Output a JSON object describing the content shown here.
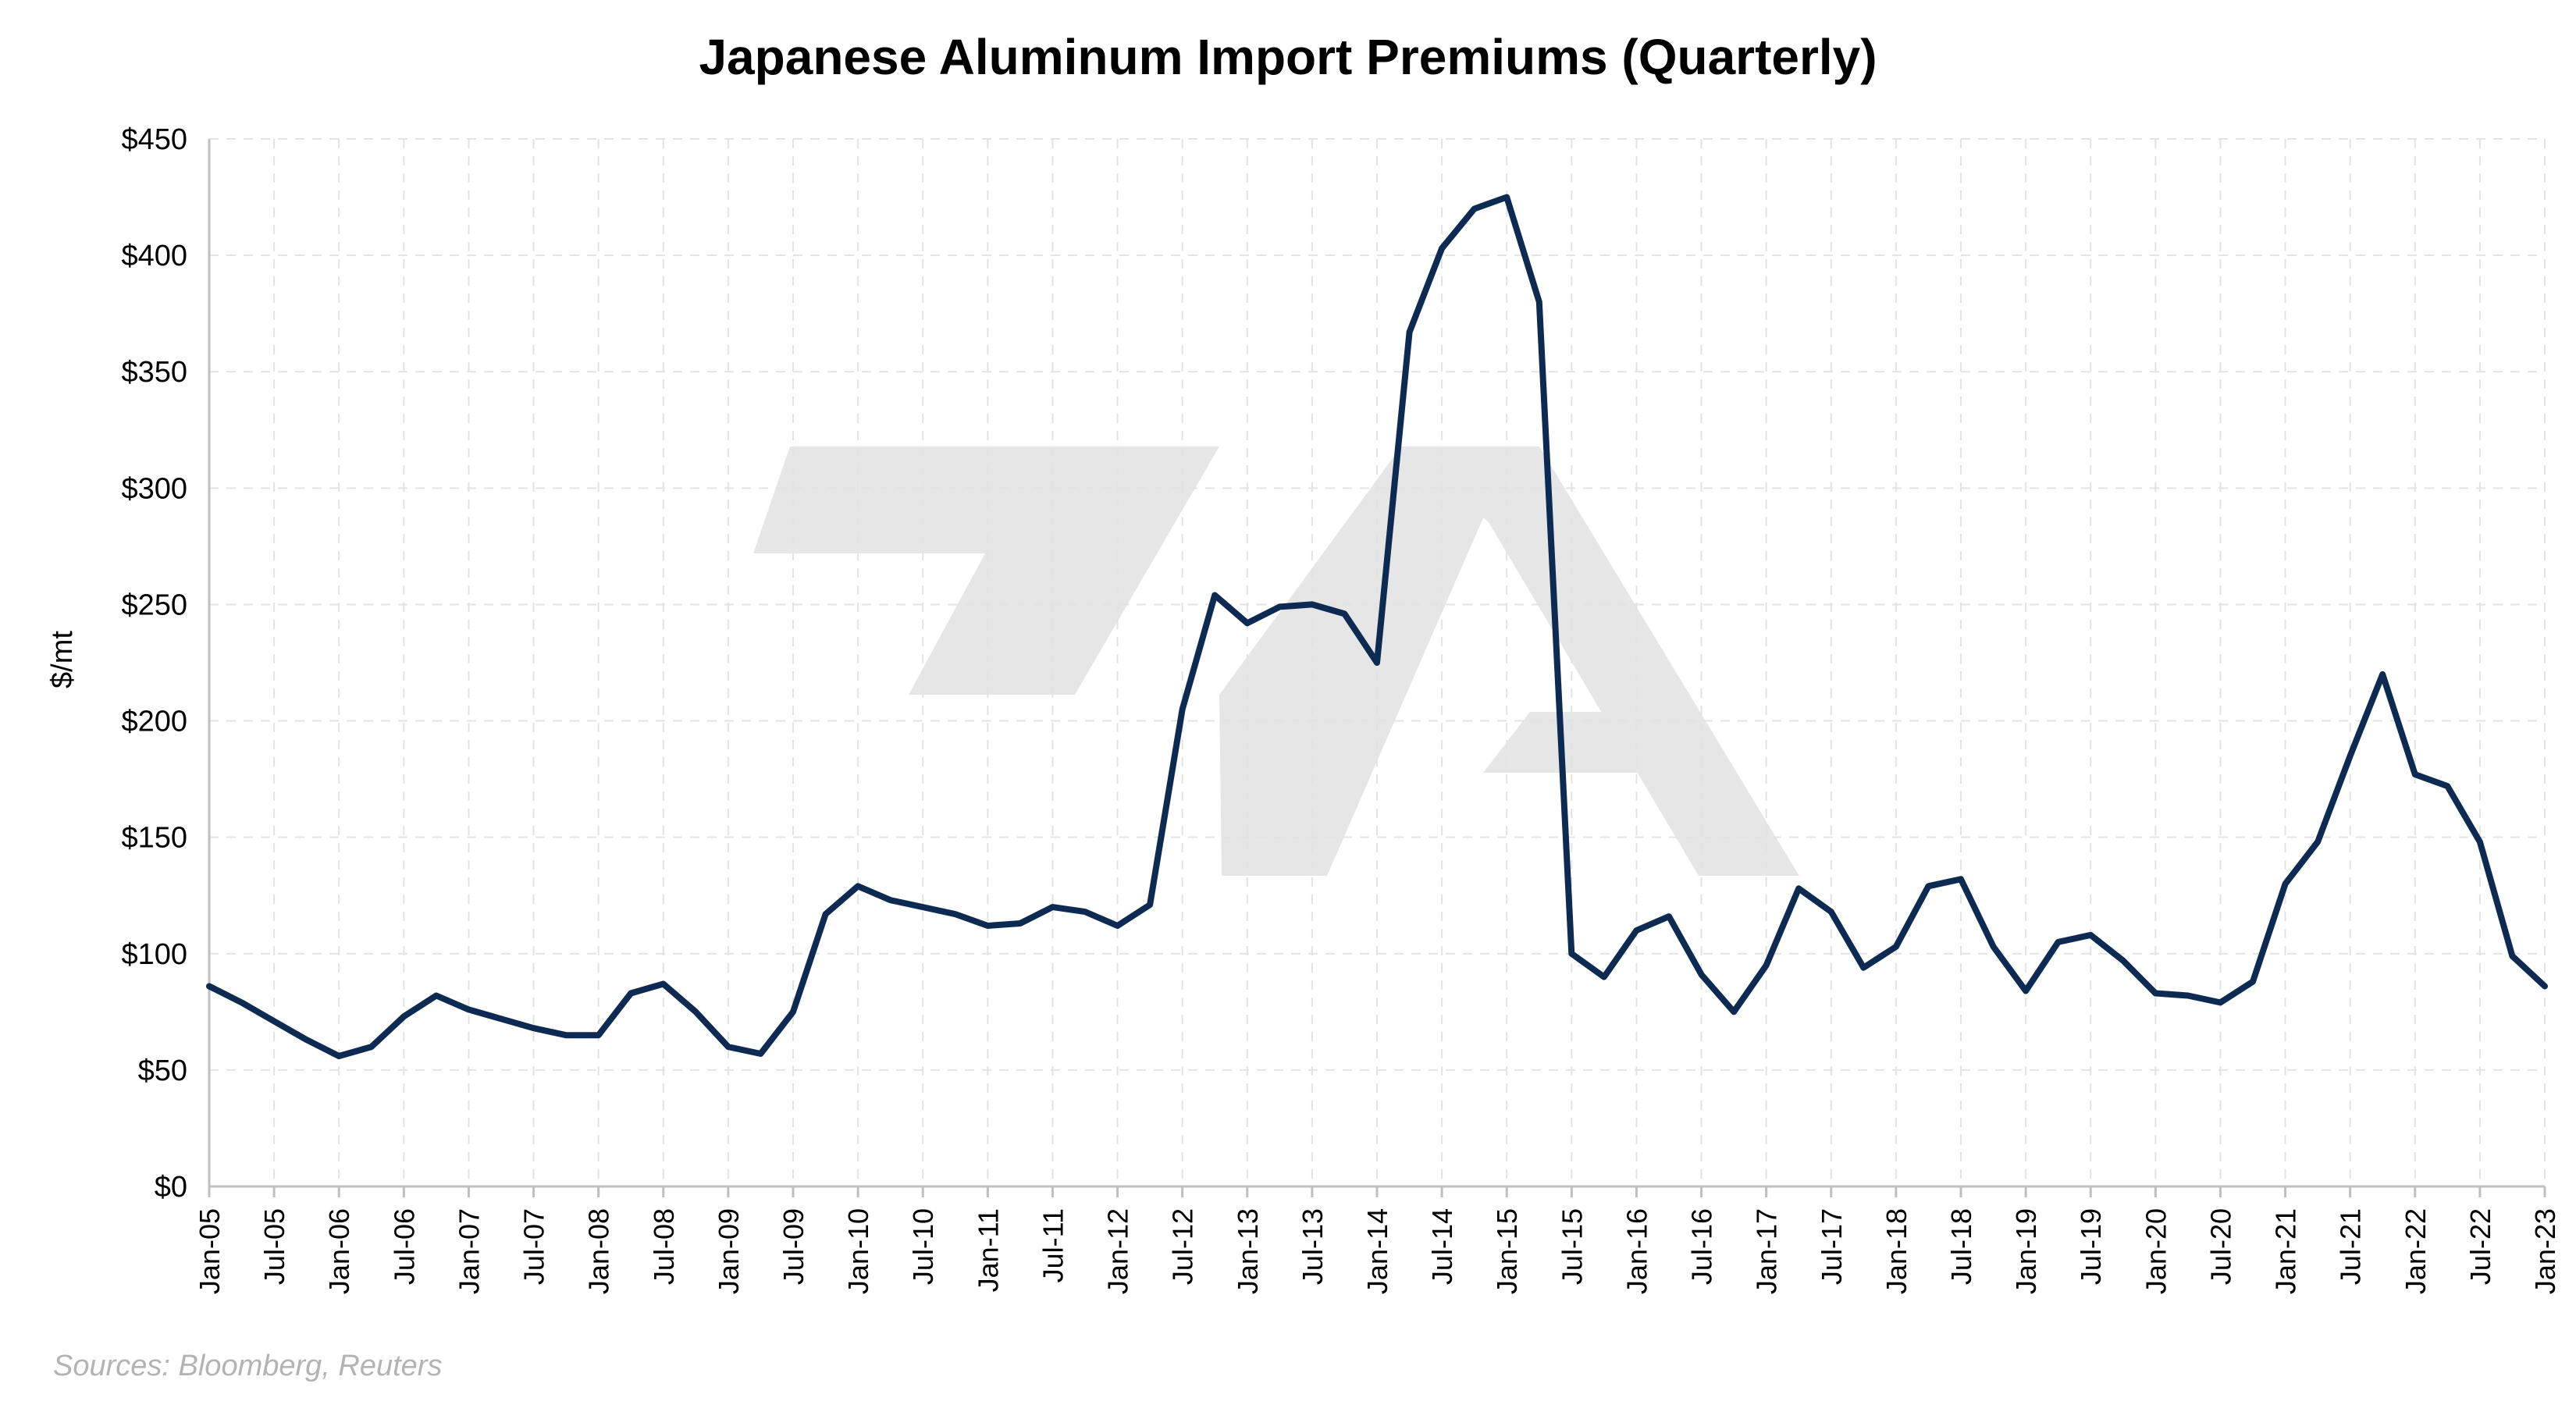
{
  "chart_data": {
    "type": "line",
    "title": "Japanese Aluminum Import Premiums (Quarterly)",
    "ylabel": "$/mt",
    "xlabel": "",
    "ylim": [
      0,
      450
    ],
    "y_ticks": [
      0,
      50,
      100,
      150,
      200,
      250,
      300,
      350,
      400,
      450
    ],
    "y_tick_labels": [
      "$0",
      "$50",
      "$100",
      "$150",
      "$200",
      "$250",
      "$300",
      "$350",
      "$400",
      "$450"
    ],
    "x_tick_labels": [
      "Jan-05",
      "Jul-05",
      "Jan-06",
      "Jul-06",
      "Jan-07",
      "Jul-07",
      "Jan-08",
      "Jul-08",
      "Jan-09",
      "Jul-09",
      "Jan-10",
      "Jul-10",
      "Jan-11",
      "Jul-11",
      "Jan-12",
      "Jul-12",
      "Jan-13",
      "Jul-13",
      "Jan-14",
      "Jul-14",
      "Jan-15",
      "Jul-15",
      "Jan-16",
      "Jul-16",
      "Jan-17",
      "Jul-17",
      "Jan-18",
      "Jul-18",
      "Jan-19",
      "Jul-19",
      "Jan-20",
      "Jul-20",
      "Jan-21",
      "Jul-21",
      "Jan-22",
      "Jul-22",
      "Jan-23"
    ],
    "grid": true,
    "legend": "none",
    "series": [
      {
        "color": "#0d2b52",
        "values": [
          86,
          79,
          71,
          63,
          56,
          60,
          73,
          82,
          76,
          72,
          68,
          65,
          65,
          83,
          87,
          75,
          60,
          57,
          75,
          117,
          129,
          123,
          120,
          117,
          112,
          113,
          120,
          118,
          112,
          121,
          205,
          254,
          242,
          249,
          250,
          246,
          225,
          367,
          403,
          420,
          425,
          380,
          100,
          90,
          110,
          116,
          91,
          75,
          95,
          128,
          118,
          94,
          103,
          129,
          132,
          103,
          84,
          105,
          108,
          97,
          83,
          82,
          79,
          88,
          130,
          148,
          185,
          220,
          177,
          172,
          148,
          99,
          86
        ]
      }
    ],
    "source_note": "Sources: Bloomberg, Reuters",
    "watermark_color": "#e6e6e6"
  }
}
